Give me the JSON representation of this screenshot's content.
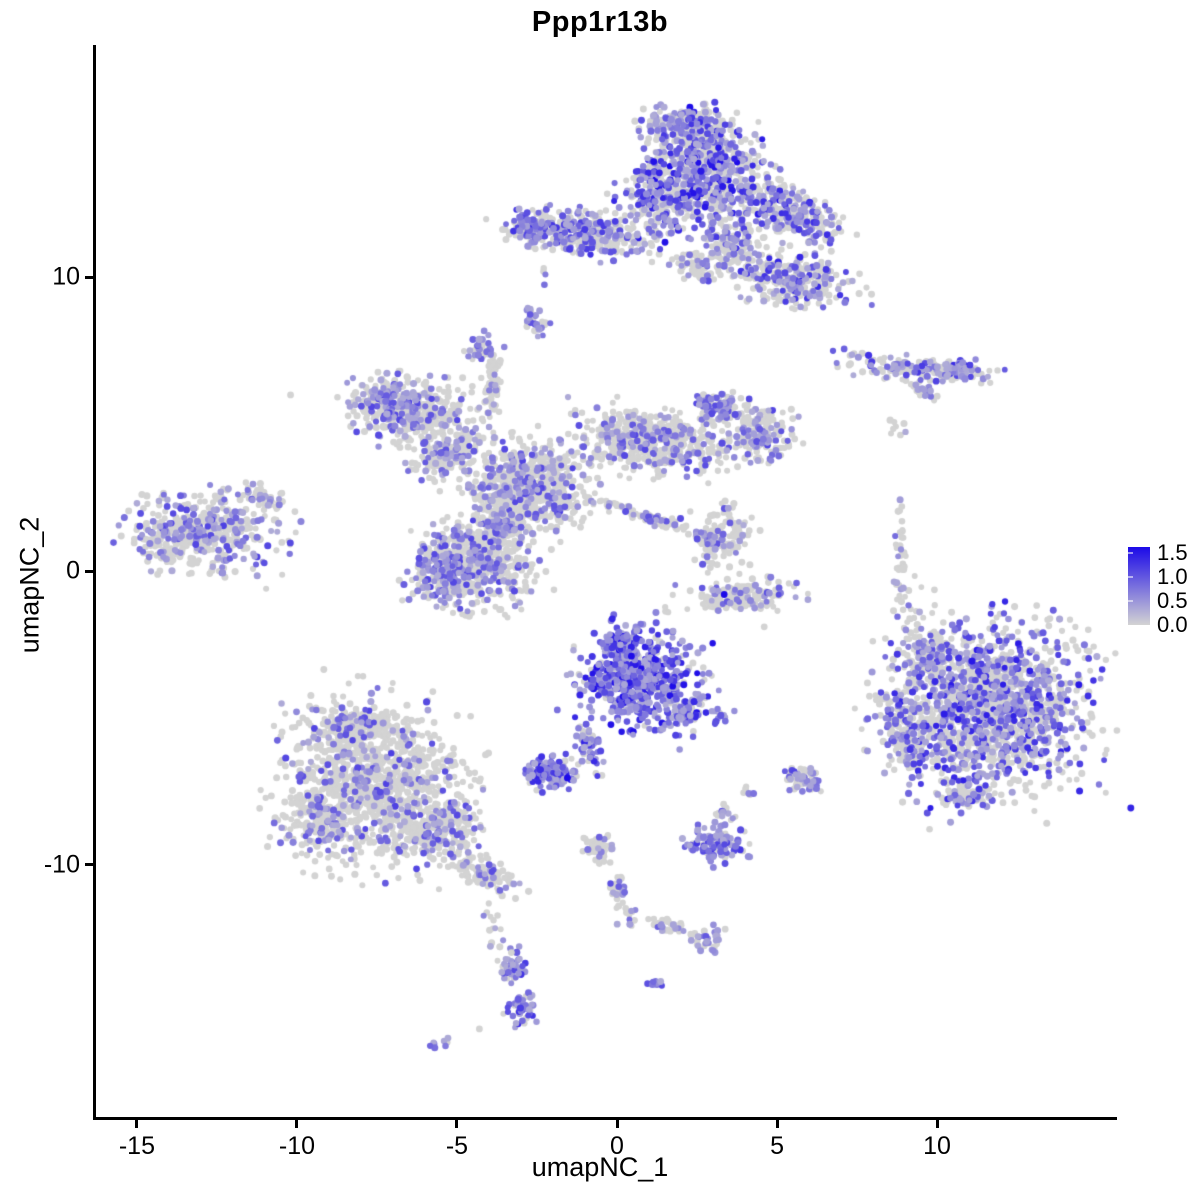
{
  "chart_data": {
    "type": "scatter",
    "title": "Ppp1r13b",
    "xlabel": "umapNC_1",
    "ylabel": "umapNC_2",
    "axes": {
      "xlim": [
        -16.31,
        15.56
      ],
      "ylim": [
        -18.6,
        17.92
      ],
      "x_ticks": [
        "-15",
        "-10",
        "-5",
        "0",
        "5",
        "10"
      ],
      "x_tick_values": [
        -15,
        -10,
        -5,
        0,
        5,
        10
      ],
      "y_ticks": [
        "10",
        "0",
        "-10"
      ],
      "y_tick_values": [
        10,
        0,
        -10
      ],
      "grid": false
    },
    "legend": {
      "labels": [
        "1.5",
        "1.0",
        "0.5",
        "0.0"
      ],
      "values": [
        1.5,
        1.0,
        0.5,
        0.0
      ],
      "bar_top_value": 1.63,
      "position": "right"
    },
    "colors": {
      "expression_low": "#d3d3d3",
      "expression_high": "#1c0ae8",
      "gray_point": "#d3d3d3",
      "axis": "#000000"
    },
    "point_radius_px": 3.2,
    "seed": 20240613,
    "cluster_fields": [
      "cx",
      "cy",
      "rx",
      "ry",
      "rot_deg",
      "n",
      "expr_frac",
      "expr_max"
    ],
    "clusters": [
      [
        2.7,
        13.6,
        1.6,
        1.5,
        -20,
        700,
        0.5,
        1.5
      ],
      [
        2.2,
        15.2,
        1.0,
        0.55,
        0,
        180,
        0.45,
        1.3
      ],
      [
        1.2,
        12.6,
        0.9,
        1.0,
        0,
        200,
        0.5,
        1.4
      ],
      [
        -1.2,
        11.5,
        1.9,
        0.6,
        -8,
        330,
        0.45,
        1.2
      ],
      [
        -2.7,
        11.7,
        0.5,
        0.45,
        0,
        80,
        0.5,
        1.2
      ],
      [
        5.3,
        12.2,
        1.5,
        0.75,
        -28,
        280,
        0.35,
        1.3
      ],
      [
        5.5,
        9.9,
        1.5,
        0.8,
        -15,
        300,
        0.4,
        1.3
      ],
      [
        3.6,
        11.0,
        0.7,
        0.8,
        0,
        120,
        0.35,
        1.2
      ],
      [
        2.5,
        10.4,
        0.6,
        0.5,
        0,
        60,
        0.25,
        1.0
      ],
      [
        -2.55,
        8.6,
        0.28,
        0.5,
        25,
        28,
        0.75,
        1.0
      ],
      [
        -4.2,
        7.55,
        0.4,
        0.42,
        0,
        40,
        0.6,
        1.0
      ],
      [
        -2.3,
        9.9,
        0.2,
        0.3,
        0,
        4,
        0.3,
        0.8
      ],
      [
        9.3,
        6.9,
        1.85,
        0.35,
        -5,
        160,
        0.4,
        1.2
      ],
      [
        10.7,
        6.85,
        0.45,
        0.35,
        0,
        50,
        0.7,
        1.3
      ],
      [
        9.6,
        6.1,
        0.5,
        0.22,
        -35,
        30,
        0.5,
        1.0
      ],
      [
        8.7,
        4.9,
        0.35,
        0.4,
        0,
        8,
        0.1,
        0.6
      ],
      [
        8.85,
        0.4,
        0.18,
        1.5,
        0,
        40,
        0.25,
        1.0
      ],
      [
        -6.4,
        5.4,
        1.6,
        1.0,
        -12,
        380,
        0.28,
        1.1
      ],
      [
        -7.3,
        5.8,
        0.7,
        0.6,
        0,
        120,
        0.5,
        1.1
      ],
      [
        -5.3,
        3.9,
        1.1,
        0.5,
        38,
        140,
        0.3,
        1.0
      ],
      [
        -2.8,
        2.9,
        1.6,
        1.3,
        0,
        650,
        0.26,
        1.1
      ],
      [
        -3.9,
        6.3,
        0.25,
        0.9,
        0,
        60,
        0.15,
        0.9
      ],
      [
        1.2,
        4.4,
        1.9,
        0.85,
        -10,
        500,
        0.28,
        1.1
      ],
      [
        3.3,
        5.6,
        0.7,
        0.5,
        0,
        110,
        0.45,
        1.1
      ],
      [
        4.6,
        4.7,
        0.8,
        0.7,
        0,
        160,
        0.35,
        1.1
      ],
      [
        -4.5,
        0.4,
        1.5,
        1.4,
        10,
        520,
        0.28,
        1.1
      ],
      [
        -5.5,
        -0.1,
        0.8,
        0.9,
        0,
        150,
        0.5,
        1.1
      ],
      [
        -3.6,
        1.7,
        0.6,
        0.6,
        0,
        120,
        0.25,
        1.0
      ],
      [
        1.2,
        1.75,
        1.6,
        0.16,
        -20,
        90,
        0.35,
        1.0
      ],
      [
        3.0,
        1.05,
        0.5,
        0.15,
        -20,
        25,
        0.7,
        1.0
      ],
      [
        -12.9,
        1.3,
        1.9,
        1.1,
        -8,
        420,
        0.33,
        1.1
      ],
      [
        -11.0,
        2.5,
        0.6,
        0.3,
        -30,
        40,
        0.4,
        1.0
      ],
      [
        -14.2,
        0.9,
        0.5,
        0.6,
        0,
        50,
        0.3,
        1.0
      ],
      [
        3.3,
        1.2,
        0.8,
        1.0,
        0,
        110,
        0.18,
        1.0
      ],
      [
        3.8,
        -0.85,
        1.5,
        0.45,
        5,
        170,
        0.25,
        1.0
      ],
      [
        0.7,
        -3.7,
        1.5,
        1.3,
        -15,
        600,
        0.85,
        1.5
      ],
      [
        0.1,
        -2.5,
        0.5,
        0.4,
        0,
        90,
        0.85,
        1.5
      ],
      [
        2.2,
        -4.8,
        0.45,
        0.8,
        -30,
        70,
        0.6,
        1.3
      ],
      [
        -0.9,
        -5.9,
        0.28,
        0.75,
        20,
        50,
        0.7,
        1.3
      ],
      [
        -2.0,
        -6.9,
        0.65,
        0.5,
        0,
        130,
        0.8,
        1.4
      ],
      [
        3.3,
        -4.9,
        0.35,
        0.2,
        0,
        14,
        0.75,
        1.1
      ],
      [
        4.1,
        -7.4,
        0.18,
        0.25,
        0,
        8,
        0.5,
        1.0
      ],
      [
        5.8,
        -7.1,
        0.5,
        0.4,
        0,
        60,
        0.55,
        1.2
      ],
      [
        11.6,
        -4.7,
        2.5,
        2.4,
        0,
        1500,
        0.45,
        1.4
      ],
      [
        9.7,
        -2.9,
        0.8,
        0.6,
        -30,
        100,
        0.3,
        1.1
      ],
      [
        9.0,
        -5.5,
        0.55,
        1.3,
        15,
        160,
        0.35,
        1.2
      ],
      [
        9.3,
        -1.5,
        0.5,
        0.9,
        0,
        25,
        0.15,
        0.8
      ],
      [
        10.9,
        -7.6,
        0.7,
        0.4,
        0,
        60,
        0.4,
        1.2
      ],
      [
        -7.6,
        -7.3,
        2.3,
        2.2,
        0,
        1100,
        0.17,
        1.1
      ],
      [
        -8.3,
        -5.3,
        1.0,
        0.6,
        0,
        150,
        0.15,
        1.0
      ],
      [
        -5.6,
        -8.7,
        1.0,
        0.8,
        0,
        200,
        0.18,
        1.0
      ],
      [
        -4.2,
        -10.3,
        1.0,
        0.45,
        -28,
        110,
        0.2,
        1.0
      ],
      [
        -3.9,
        -12.2,
        0.25,
        0.8,
        0,
        14,
        0.2,
        0.9
      ],
      [
        -9.3,
        -8.6,
        0.8,
        0.9,
        0,
        130,
        0.3,
        1.0
      ],
      [
        -0.55,
        -9.4,
        0.45,
        0.35,
        -20,
        45,
        0.15,
        0.9
      ],
      [
        0.1,
        -11.0,
        0.22,
        0.9,
        15,
        40,
        0.3,
        1.0
      ],
      [
        1.6,
        -12.1,
        0.9,
        0.2,
        -18,
        35,
        0.3,
        1.0
      ],
      [
        2.9,
        -12.6,
        0.45,
        0.35,
        0,
        30,
        0.65,
        1.1
      ],
      [
        3.1,
        -9.3,
        0.8,
        0.5,
        0,
        120,
        0.8,
        1.2
      ],
      [
        3.3,
        -8.3,
        0.3,
        0.3,
        0,
        15,
        0.6,
        1.0
      ],
      [
        1.25,
        -14.05,
        0.2,
        0.22,
        0,
        14,
        0.8,
        1.1
      ],
      [
        -3.25,
        -13.5,
        0.3,
        0.55,
        8,
        45,
        0.8,
        1.3
      ],
      [
        -3.0,
        -14.9,
        0.38,
        0.5,
        -8,
        50,
        0.75,
        1.3
      ],
      [
        -5.55,
        -16.1,
        0.22,
        0.16,
        30,
        8,
        0.8,
        1.1
      ]
    ],
    "extra_point_fields": [
      "x",
      "y",
      "value"
    ],
    "extra_points": [
      [
        3.35,
        -0.8,
        1.55
      ],
      [
        -1.55,
        -7.05,
        1.55
      ],
      [
        0.45,
        -2.9,
        1.5
      ],
      [
        1.15,
        13.95,
        1.45
      ],
      [
        2.75,
        12.4,
        1.4
      ],
      [
        1.5,
        11.2,
        1.45
      ],
      [
        12.9,
        -3.4,
        1.35
      ],
      [
        -10.2,
        6.0,
        0
      ],
      [
        4.6,
        -1.9,
        0
      ],
      [
        -3.3,
        -13.0,
        0
      ],
      [
        -4.3,
        -15.6,
        0
      ]
    ]
  }
}
